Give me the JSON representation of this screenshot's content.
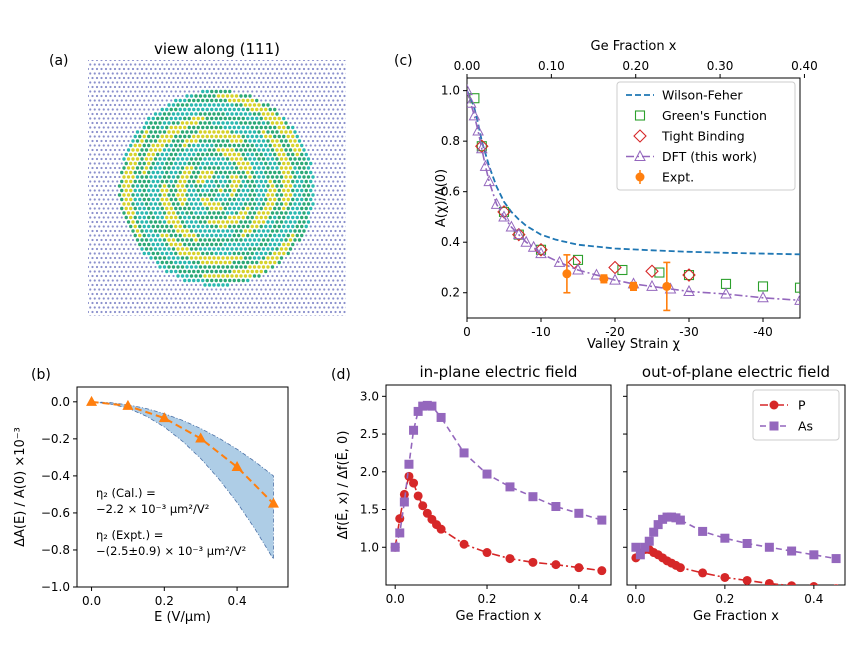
{
  "panel_labels": {
    "a": "(a)",
    "b": "(b)",
    "c": "(c)",
    "d": "(d)"
  },
  "colors": {
    "wilson": "#1f77b4",
    "green": "#2ca02c",
    "tight": "#d62728",
    "dft": "#9467bd",
    "expt": "#ff7f0e",
    "P": "#d62728",
    "As": "#9467bd",
    "band": "#aecde6",
    "lattice_bg": "#8a90cc",
    "lattice_green": "#2aa876",
    "lattice_yellow": "#d6d22a",
    "lattice_cyan": "#2ab8b0"
  },
  "panel_a": {
    "title": "view along (111)"
  },
  "chart_data": [
    {
      "id": "c",
      "type": "line",
      "xlabel": "Valley Strain χ",
      "ylabel": "A(χ)/A(0)",
      "top_xlabel": "Ge Fraction x",
      "xlim": [
        0,
        -45
      ],
      "ylim": [
        0.1,
        1.05
      ],
      "xticks": [
        0,
        -10,
        -20,
        -30,
        -40
      ],
      "xtick_labels": [
        "0",
        "-10",
        "-20",
        "-30",
        "-40"
      ],
      "yticks": [
        0.2,
        0.4,
        0.6,
        0.8,
        1.0
      ],
      "ytick_labels": [
        "0.2",
        "0.4",
        "0.6",
        "0.8",
        "1.0"
      ],
      "top_ticks": [
        0,
        0.1,
        0.2,
        0.3,
        0.4
      ],
      "top_tick_labels": [
        "0.00",
        "0.10",
        "0.20",
        "0.30",
        "0.40"
      ],
      "top_scale_chi_per_x": -114,
      "series": [
        {
          "name": "Wilson-Feher",
          "style": "dashed",
          "x": [
            0,
            -0.5,
            -1,
            -1.5,
            -2,
            -3,
            -4,
            -5,
            -6,
            -7,
            -8,
            -10,
            -12,
            -15,
            -20,
            -25,
            -30,
            -35,
            -40,
            -45
          ],
          "y": [
            1.0,
            0.97,
            0.93,
            0.87,
            0.8,
            0.7,
            0.62,
            0.56,
            0.52,
            0.49,
            0.465,
            0.43,
            0.41,
            0.39,
            0.375,
            0.368,
            0.362,
            0.358,
            0.355,
            0.352
          ]
        },
        {
          "name": "Green's Function",
          "style": "square-open",
          "x": [
            -1,
            -2,
            -5,
            -7,
            -10,
            -15,
            -21,
            -26,
            -30,
            -35,
            -40,
            -45
          ],
          "y": [
            0.97,
            0.78,
            0.52,
            0.43,
            0.37,
            0.33,
            0.29,
            0.28,
            0.27,
            0.235,
            0.225,
            0.22
          ]
        },
        {
          "name": "Tight Binding",
          "style": "diamond-open",
          "x": [
            -2,
            -5,
            -7,
            -10,
            -14.5,
            -20,
            -25,
            -30
          ],
          "y": [
            0.78,
            0.52,
            0.43,
            0.37,
            0.32,
            0.3,
            0.285,
            0.27
          ]
        },
        {
          "name": "DFT (this work)",
          "style": "triangle-dashdot",
          "x": [
            0,
            -0.5,
            -1,
            -1.5,
            -2,
            -2.5,
            -3,
            -4,
            -5,
            -6,
            -7,
            -8,
            -9,
            -10,
            -12.5,
            -15,
            -17.5,
            -20,
            -22.5,
            -25,
            -27.5,
            -30,
            -35,
            -40,
            -45
          ],
          "y": [
            1.0,
            0.95,
            0.9,
            0.84,
            0.77,
            0.7,
            0.64,
            0.55,
            0.5,
            0.46,
            0.43,
            0.4,
            0.38,
            0.355,
            0.32,
            0.29,
            0.27,
            0.25,
            0.235,
            0.225,
            0.215,
            0.205,
            0.195,
            0.18,
            0.17
          ]
        },
        {
          "name": "Expt.",
          "style": "circle-err",
          "x": [
            -13.5,
            -18.5,
            -22.5,
            -27
          ],
          "y": [
            0.275,
            0.255,
            0.225,
            0.225
          ],
          "err": [
            0.075,
            0.015,
            0.015,
            0.095
          ]
        }
      ],
      "legend": [
        "Wilson-Feher",
        "Green's Function",
        "Tight Binding",
        "DFT (this work)",
        "Expt."
      ]
    },
    {
      "id": "b",
      "type": "line",
      "xlabel": "E (V/μm)",
      "ylabel": "ΔA(E) / A(0) ×10⁻³",
      "xlim": [
        -0.04,
        0.54
      ],
      "ylim": [
        -1.0,
        0.08
      ],
      "xticks": [
        0,
        0.2,
        0.4
      ],
      "xtick_labels": [
        "0.0",
        "0.2",
        "0.4"
      ],
      "yticks": [
        0,
        -0.2,
        -0.4,
        -0.6,
        -0.8,
        -1.0
      ],
      "ytick_labels": [
        "0.0",
        "−0.2",
        "−0.4",
        "−0.6",
        "−0.8",
        "−1.0"
      ],
      "series": [
        {
          "name": "Cal.",
          "style": "triangle-dashed",
          "x": [
            0,
            0.1,
            0.2,
            0.3,
            0.4,
            0.5
          ],
          "y": [
            0,
            -0.022,
            -0.088,
            -0.198,
            -0.352,
            -0.55
          ]
        }
      ],
      "band": {
        "x": [
          0,
          0.05,
          0.1,
          0.15,
          0.2,
          0.25,
          0.3,
          0.35,
          0.4,
          0.45,
          0.5
        ],
        "lower": [
          0,
          -0.011,
          -0.034,
          -0.077,
          -0.136,
          -0.213,
          -0.306,
          -0.417,
          -0.544,
          -0.689,
          -0.85
        ],
        "upper": [
          0,
          -0.004,
          -0.016,
          -0.036,
          -0.064,
          -0.1,
          -0.144,
          -0.196,
          -0.256,
          -0.324,
          -0.4
        ]
      },
      "annotations": [
        {
          "line1": "η₂ (Cal.) =",
          "line2": "−2.2 × 10⁻³ μm²/V²"
        },
        {
          "line1": "η₂ (Expt.) =",
          "line2": "−(2.5±0.9) × 10⁻³ μm²/V²"
        }
      ]
    },
    {
      "id": "d1",
      "type": "line",
      "title": "in-plane electric field",
      "xlabel": "Ge Fraction x",
      "ylabel": "Δf(Ē, x) / Δf(Ē, 0)",
      "xlim": [
        -0.02,
        0.47
      ],
      "ylim": [
        0.5,
        3.15
      ],
      "xticks": [
        0,
        0.2,
        0.4
      ],
      "xtick_labels": [
        "0.0",
        "0.2",
        "0.4"
      ],
      "yticks": [
        1.0,
        1.5,
        2.0,
        2.5,
        3.0
      ],
      "ytick_labels": [
        "1.0",
        "1.5",
        "2.0",
        "2.5",
        "3.0"
      ],
      "series": [
        {
          "name": "P",
          "style": "circle-dashdot",
          "x": [
            0,
            0.01,
            0.02,
            0.03,
            0.04,
            0.05,
            0.06,
            0.07,
            0.08,
            0.09,
            0.1,
            0.15,
            0.2,
            0.25,
            0.3,
            0.35,
            0.4,
            0.45
          ],
          "y": [
            1.0,
            1.38,
            1.7,
            1.94,
            1.85,
            1.68,
            1.55,
            1.45,
            1.37,
            1.3,
            1.24,
            1.04,
            0.93,
            0.85,
            0.8,
            0.77,
            0.73,
            0.69
          ]
        },
        {
          "name": "As",
          "style": "square-dashed",
          "x": [
            0,
            0.01,
            0.02,
            0.03,
            0.04,
            0.05,
            0.06,
            0.07,
            0.08,
            0.1,
            0.15,
            0.2,
            0.25,
            0.3,
            0.35,
            0.4,
            0.45
          ],
          "y": [
            1.0,
            1.19,
            1.6,
            2.1,
            2.55,
            2.8,
            2.87,
            2.88,
            2.87,
            2.72,
            2.25,
            1.97,
            1.8,
            1.67,
            1.54,
            1.45,
            1.36
          ]
        }
      ]
    },
    {
      "id": "d2",
      "type": "line",
      "title": "out-of-plane electric field",
      "xlabel": "Ge Fraction x",
      "xlim": [
        -0.02,
        0.47
      ],
      "ylim": [
        0.5,
        3.15
      ],
      "xticks": [
        0,
        0.2,
        0.4
      ],
      "xtick_labels": [
        "0.0",
        "0.2",
        "0.4"
      ],
      "series": [
        {
          "name": "P",
          "style": "circle-dashdot",
          "x": [
            0,
            0.01,
            0.02,
            0.03,
            0.04,
            0.05,
            0.06,
            0.07,
            0.08,
            0.09,
            0.1,
            0.15,
            0.2,
            0.25,
            0.3,
            0.35,
            0.4,
            0.45
          ],
          "y": [
            0.86,
            0.92,
            0.97,
            0.97,
            0.93,
            0.9,
            0.86,
            0.82,
            0.79,
            0.76,
            0.73,
            0.66,
            0.6,
            0.56,
            0.52,
            0.49,
            0.48,
            0.45
          ]
        },
        {
          "name": "As",
          "style": "square-dashed",
          "x": [
            0,
            0.01,
            0.02,
            0.03,
            0.04,
            0.05,
            0.06,
            0.07,
            0.08,
            0.09,
            0.1,
            0.15,
            0.2,
            0.25,
            0.3,
            0.35,
            0.4,
            0.45
          ],
          "y": [
            1.0,
            0.9,
            1.0,
            1.08,
            1.2,
            1.3,
            1.37,
            1.4,
            1.4,
            1.39,
            1.36,
            1.21,
            1.12,
            1.05,
            1.0,
            0.95,
            0.9,
            0.85
          ]
        }
      ],
      "legend": [
        "P",
        "As"
      ]
    }
  ]
}
